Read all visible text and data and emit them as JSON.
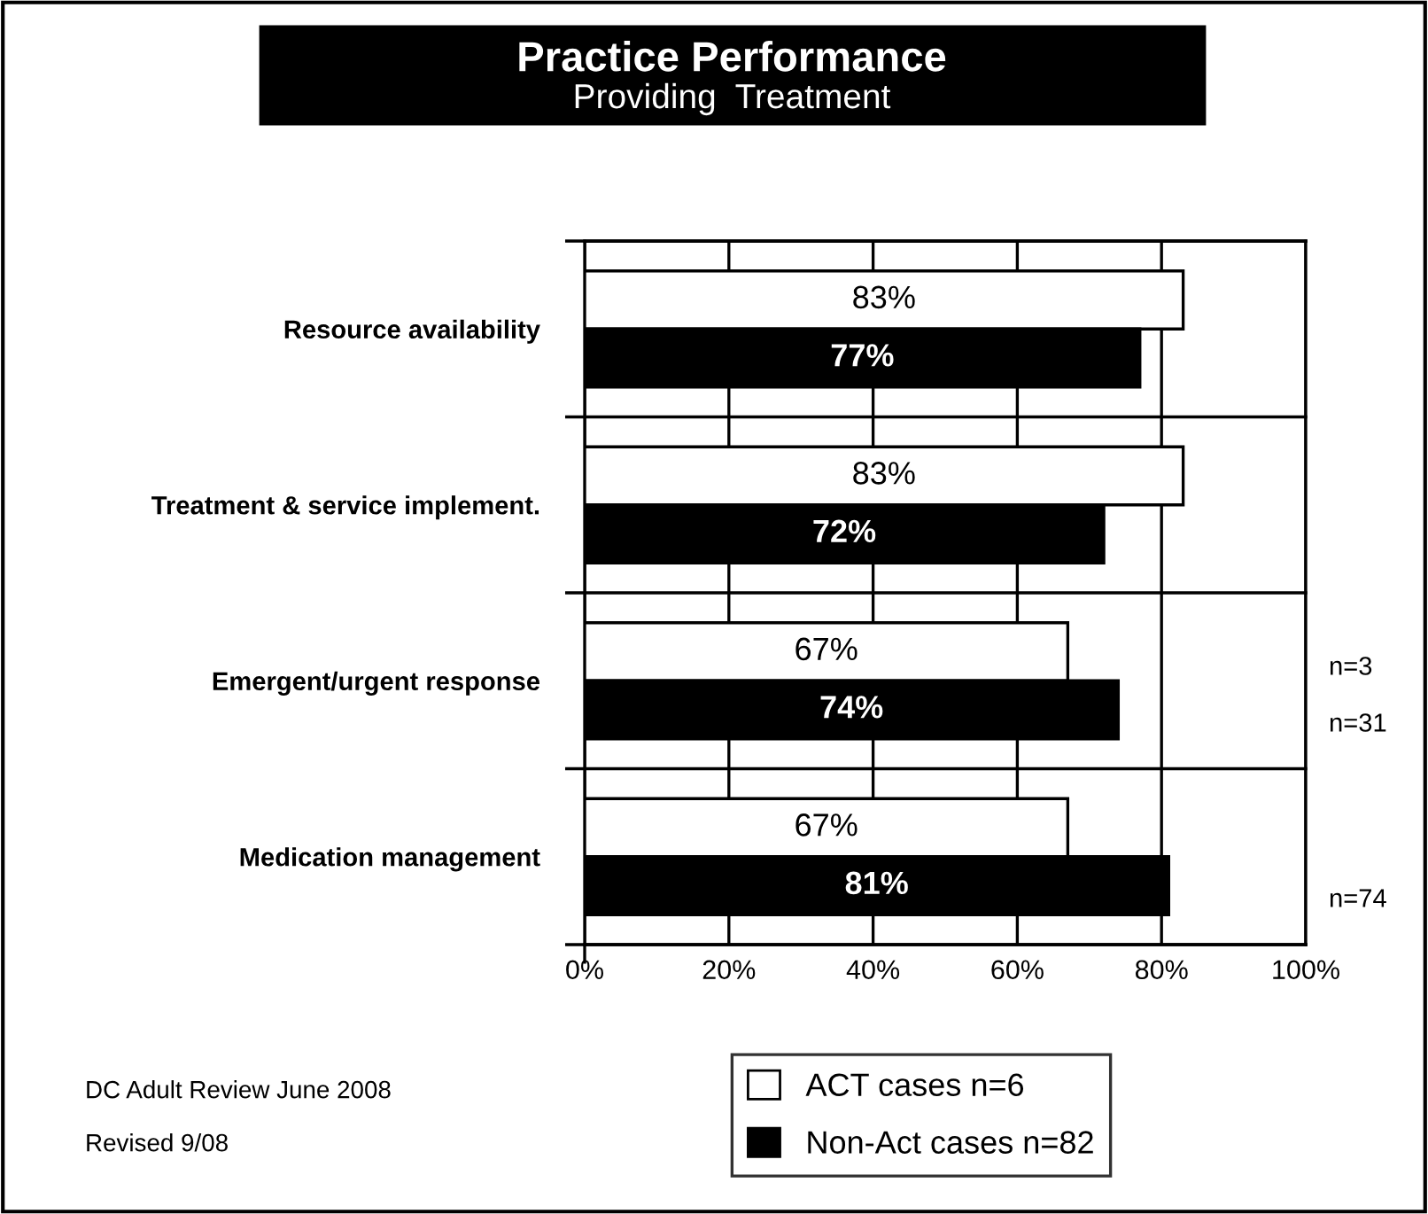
{
  "chart_data": {
    "type": "bar",
    "orientation": "horizontal",
    "title": "Practice Performance",
    "subtitle": "Providing  Treatment",
    "categories": [
      "Resource availability",
      "Treatment & service implement.",
      "Emergent/urgent response",
      "Medication management"
    ],
    "series": [
      {
        "name": "ACT cases n=6",
        "color": "#ffffff",
        "values": [
          83,
          83,
          67,
          67
        ],
        "value_labels": [
          "83%",
          "83%",
          "67%",
          "67%"
        ]
      },
      {
        "name": "Non-Act cases n=82",
        "color": "#000000",
        "values": [
          77,
          72,
          74,
          81
        ],
        "value_labels": [
          "77%",
          "72%",
          "74%",
          "81%"
        ]
      }
    ],
    "xlim": [
      0,
      100
    ],
    "xticks": [
      {
        "value": 0,
        "label": "0%"
      },
      {
        "value": 20,
        "label": "20%"
      },
      {
        "value": 40,
        "label": "40%"
      },
      {
        "value": 60,
        "label": "60%"
      },
      {
        "value": 80,
        "label": "80%"
      },
      {
        "value": 100,
        "label": "100%"
      }
    ],
    "grid": "x",
    "legend": "bottom",
    "annotations": [
      "n=3",
      "n=31",
      "n=74",
      "DC Adult Review June 2008",
      "Revised 9/08"
    ]
  }
}
